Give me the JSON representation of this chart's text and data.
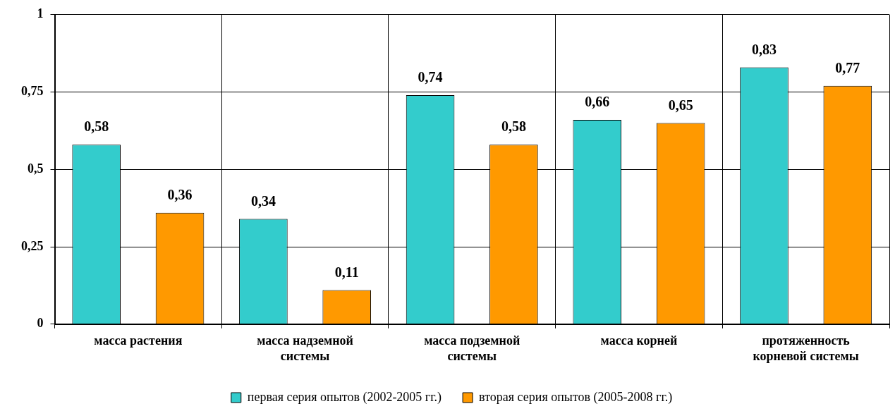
{
  "chart_data": {
    "type": "bar",
    "categories": [
      "масса растения",
      "масса надземной системы",
      "масса подземной системы",
      "масса корней",
      "протяженность корневой системы"
    ],
    "series": [
      {
        "name": "первая серия опытов (2002-2005 гг.)",
        "color": "#33cccc",
        "values": [
          0.58,
          0.34,
          0.74,
          0.66,
          0.83
        ],
        "value_labels": [
          "0,58",
          "0,34",
          "0,74",
          "0,66",
          "0,83"
        ]
      },
      {
        "name": "вторая серия опытов (2005-2008 гг.)",
        "color": "#ff9900",
        "values": [
          0.36,
          0.11,
          0.58,
          0.65,
          0.77
        ],
        "value_labels": [
          "0,36",
          "0,11",
          "0,58",
          "0,65",
          "0,77"
        ]
      }
    ],
    "ylim": [
      0,
      1
    ],
    "yticks": [
      0,
      {
        "value": 0.25,
        "label": "0,25"
      },
      {
        "value": 0.5,
        "label": "0,5"
      },
      {
        "value": 0.75,
        "label": "0,75"
      },
      1
    ],
    "grid": true,
    "legend": "bottom"
  }
}
